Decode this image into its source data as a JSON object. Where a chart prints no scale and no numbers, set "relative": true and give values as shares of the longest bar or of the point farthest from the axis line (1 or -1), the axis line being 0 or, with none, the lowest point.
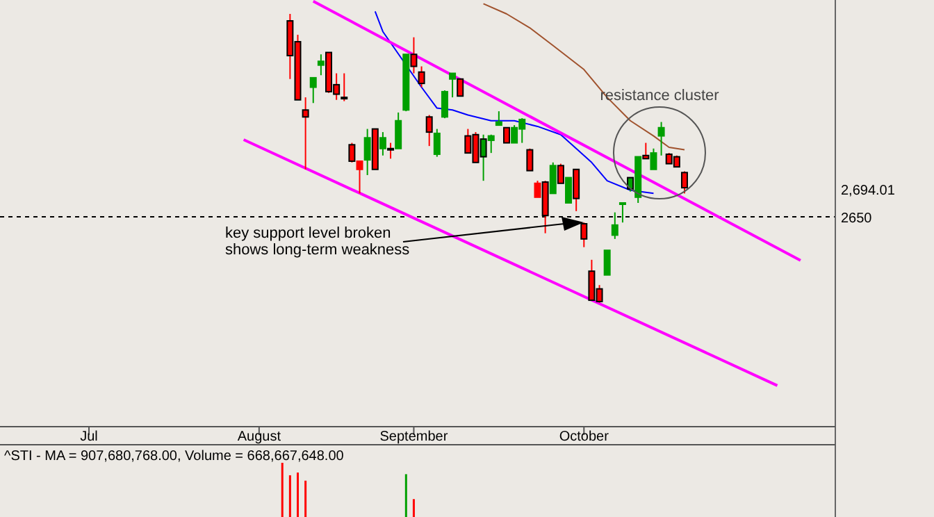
{
  "chart_data": [
    {
      "type": "candlestick",
      "categories": [
        null,
        null,
        null,
        null,
        null,
        null,
        null,
        null,
        null,
        null,
        null,
        "Jul",
        null,
        null,
        null,
        null,
        null,
        null,
        null,
        null,
        null,
        null,
        null,
        null,
        null,
        null,
        null,
        null,
        null,
        null,
        null,
        null,
        null,
        "August",
        null,
        null,
        null,
        null,
        null,
        null,
        null,
        null,
        null,
        null,
        null,
        null,
        null,
        null,
        null,
        null,
        null,
        null,
        null,
        "September",
        null,
        null,
        null,
        null,
        null,
        null,
        null,
        null,
        null,
        null,
        null,
        null,
        null,
        null,
        null,
        null,
        null,
        null,
        null,
        null,
        null,
        "October",
        null,
        null,
        null,
        null,
        null,
        null,
        null,
        null,
        null,
        null,
        null,
        null,
        null,
        null,
        null,
        null,
        null,
        null,
        null,
        null,
        null,
        null,
        null,
        null,
        null,
        null,
        null,
        null,
        null,
        null,
        null,
        null
      ],
      "ohlc": [
        null,
        null,
        null,
        null,
        null,
        null,
        null,
        null,
        null,
        null,
        null,
        null,
        null,
        null,
        null,
        null,
        null,
        null,
        null,
        null,
        null,
        null,
        null,
        null,
        null,
        null,
        null,
        null,
        null,
        null,
        null,
        null,
        null,
        null,
        null,
        null,
        null,
        [
          2960,
          2971,
          2868,
          2905
        ],
        [
          2927,
          2938,
          2835,
          2835
        ],
        [
          2819,
          2839,
          2725,
          2808
        ],
        [
          2855,
          2870,
          2830,
          2870
        ],
        [
          2890,
          2907,
          2874,
          2896
        ],
        [
          2910,
          2910,
          2846,
          2848
        ],
        [
          2859,
          2877,
          2835,
          2844
        ],
        [
          2839,
          2877,
          2833,
          2837
        ],
        [
          2764,
          2767,
          2736,
          2738
        ],
        [
          2725,
          2738,
          2687,
          2738
        ],
        [
          2740,
          2789,
          2716,
          2775
        ],
        [
          2789,
          2789,
          2725,
          2725
        ],
        [
          2758,
          2784,
          2747,
          2775
        ],
        [
          2758,
          2767,
          2742,
          2756
        ],
        [
          2758,
          2815,
          2758,
          2802
        ],
        [
          2819,
          2907,
          2817,
          2907
        ],
        [
          2907,
          2934,
          2877,
          2888
        ],
        [
          2879,
          2888,
          2855,
          2861
        ],
        [
          2808,
          2811,
          2762,
          2784
        ],
        [
          2749,
          2789,
          2745,
          2782
        ],
        [
          2808,
          2850,
          2806,
          2848
        ],
        [
          2868,
          2877,
          2839,
          2877
        ],
        [
          2868,
          2868,
          2841,
          2841
        ],
        [
          2778,
          2789,
          2751,
          2751
        ],
        [
          2780,
          2784,
          2736,
          2736
        ],
        [
          2773,
          2780,
          2707,
          2745
        ],
        [
          2771,
          2780,
          2751,
          2778
        ],
        [
          2795,
          2817,
          2795,
          2800
        ],
        [
          2791,
          2791,
          2767,
          2767
        ],
        [
          2767,
          2795,
          2767,
          2791
        ],
        [
          2789,
          2806,
          2767,
          2804
        ],
        [
          2756,
          2758,
          2723,
          2723
        ],
        [
          2681,
          2707,
          2681,
          2703
        ],
        [
          2705,
          2707,
          2624,
          2652
        ],
        [
          2687,
          2736,
          2687,
          2731
        ],
        [
          2731,
          2734,
          2703,
          2703
        ],
        [
          2672,
          2712,
          2672,
          2712
        ],
        [
          2725,
          2725,
          2659,
          2679
        ],
        [
          2639,
          2641,
          2602,
          2615
        ],
        [
          2564,
          2582,
          2518,
          2518
        ],
        [
          2536,
          2542,
          2514,
          2516
        ],
        [
          2558,
          2597,
          2558,
          2597
        ],
        [
          2621,
          2657,
          2615,
          2637
        ],
        [
          2670,
          2672,
          2641,
          2672
        ],
        [
          2712,
          2712,
          2690,
          2694
        ],
        [
          2681,
          2745,
          2672,
          2745
        ],
        [
          2747,
          2767,
          2742,
          2742
        ],
        [
          2725,
          2758,
          2725,
          2751
        ],
        [
          2778,
          2800,
          2747,
          2791
        ],
        [
          2749,
          2751,
          2734,
          2734
        ],
        [
          2745,
          2747,
          2729,
          2729
        ],
        [
          2720,
          2722,
          2687,
          2696
        ],
        null,
        null,
        null,
        null,
        null,
        null,
        null,
        null,
        null,
        null,
        null,
        null,
        null,
        null,
        null,
        null,
        null,
        null,
        null
      ],
      "colors": [
        null,
        null,
        null,
        null,
        null,
        null,
        null,
        null,
        null,
        null,
        null,
        null,
        null,
        null,
        null,
        null,
        null,
        null,
        null,
        null,
        null,
        null,
        null,
        null,
        null,
        null,
        null,
        null,
        null,
        null,
        null,
        null,
        null,
        null,
        null,
        null,
        null,
        "#ff0000",
        "#ff0000",
        "#ff0000",
        "#00a000",
        "#00a000",
        "#ff0000",
        "#ff0000",
        "#ff0000",
        "#ff0000",
        "#ff0000",
        "#00a000",
        "#ff0000",
        "#00a000",
        "#ff0000",
        "#00a000",
        "#00a000",
        "#ff0000",
        "#ff0000",
        "#ff0000",
        "#00a000",
        "#00a000",
        "#00a000",
        "#ff0000",
        "#ff0000",
        "#ff0000",
        "#00a000",
        "#00a000",
        "#00a000",
        "#ff0000",
        "#00a000",
        "#00a000",
        "#ff0000",
        "#ff0000",
        "#ff0000",
        "#00a000",
        "#ff0000",
        "#00a000",
        "#ff0000",
        "#ff0000",
        "#ff0000",
        "#ff0000",
        "#00a000",
        "#00a000",
        "#00a000",
        "#00a000",
        "#00a000",
        "#ff0000",
        "#00a000",
        "#00a000",
        "#ff0000",
        "#ff0000",
        "#ff0000",
        null,
        null,
        null,
        null,
        null,
        null,
        null,
        null,
        null,
        null,
        null,
        null,
        null,
        null,
        null,
        null,
        null,
        null,
        null
      ],
      "series": [
        {
          "type": "line",
          "color": "#0000ff",
          "values": [
            null,
            null,
            null,
            null,
            null,
            null,
            null,
            null,
            null,
            null,
            null,
            null,
            null,
            null,
            null,
            null,
            null,
            null,
            null,
            null,
            null,
            null,
            null,
            null,
            null,
            null,
            null,
            null,
            null,
            null,
            null,
            null,
            null,
            null,
            null,
            null,
            null,
            null,
            null,
            null,
            null,
            null,
            null,
            null,
            null,
            null,
            null,
            null,
            2975,
            2943,
            null,
            null,
            null,
            null,
            2855,
            null,
            2822,
            null,
            2819,
            null,
            2811,
            null,
            null,
            2802,
            null,
            null,
            2802,
            null,
            null,
            2793,
            null,
            null,
            2780,
            null,
            2758,
            null,
            2736,
            null,
            2707,
            null,
            null,
            2692,
            null,
            null,
            2687,
            null,
            null,
            null,
            null,
            null,
            null,
            null,
            null,
            null,
            null,
            null,
            null,
            null,
            null,
            null,
            null,
            null,
            null,
            null,
            null,
            null,
            null,
            null
          ]
        },
        {
          "type": "line",
          "color": "#a0522d",
          "values": [
            null,
            null,
            null,
            null,
            null,
            null,
            null,
            null,
            null,
            null,
            null,
            null,
            null,
            null,
            null,
            null,
            null,
            null,
            null,
            null,
            null,
            null,
            null,
            null,
            null,
            null,
            null,
            null,
            null,
            null,
            null,
            null,
            null,
            null,
            null,
            null,
            null,
            null,
            null,
            null,
            null,
            null,
            null,
            null,
            null,
            null,
            null,
            null,
            null,
            null,
            null,
            null,
            null,
            null,
            null,
            null,
            null,
            null,
            null,
            null,
            null,
            null,
            2987,
            null,
            null,
            2971,
            null,
            null,
            2949,
            null,
            null,
            2921,
            null,
            null,
            null,
            2883,
            null,
            null,
            2839,
            null,
            null,
            2802,
            null,
            null,
            2778,
            null,
            2760,
            null,
            2756,
            null,
            null,
            null,
            null,
            null,
            null,
            null,
            null,
            null,
            null,
            null,
            null,
            null,
            null,
            null,
            null,
            null,
            null,
            null
          ]
        },
        {
          "type": "line",
          "color": "#ff00ff",
          "values": [
            null,
            null,
            null,
            null,
            null,
            null,
            null,
            null,
            null,
            null,
            null,
            null,
            null,
            null,
            null,
            null,
            null,
            null,
            null,
            null,
            null,
            null,
            null,
            null,
            null,
            null,
            null,
            null,
            null,
            null,
            null,
            null,
            null,
            null,
            null,
            null,
            null,
            null,
            null,
            null,
            2991,
            null,
            null,
            null,
            null,
            null,
            null,
            null,
            null,
            null,
            null,
            null,
            null,
            null,
            null,
            null,
            null,
            null,
            null,
            null,
            null,
            null,
            null,
            null,
            null,
            null,
            null,
            null,
            null,
            null,
            null,
            null,
            null,
            null,
            null,
            null,
            null,
            null,
            null,
            null,
            null,
            null,
            null,
            null,
            null,
            null,
            null,
            null,
            null,
            null,
            null,
            null,
            null,
            null,
            null,
            null,
            null,
            null,
            null,
            null,
            null,
            null,
            null,
            2581,
            null,
            null,
            null,
            null
          ]
        },
        {
          "type": "line",
          "color": "#ff00ff",
          "values": [
            null,
            null,
            null,
            null,
            null,
            null,
            null,
            null,
            null,
            null,
            null,
            null,
            null,
            null,
            null,
            null,
            null,
            null,
            null,
            null,
            null,
            null,
            null,
            null,
            null,
            null,
            null,
            null,
            null,
            null,
            null,
            2772,
            null,
            null,
            null,
            null,
            null,
            null,
            null,
            null,
            null,
            null,
            null,
            null,
            null,
            null,
            null,
            null,
            null,
            null,
            null,
            null,
            null,
            null,
            null,
            null,
            null,
            null,
            null,
            null,
            null,
            null,
            null,
            null,
            null,
            null,
            null,
            null,
            null,
            null,
            null,
            null,
            null,
            null,
            null,
            null,
            null,
            null,
            null,
            null,
            null,
            null,
            null,
            null,
            null,
            null,
            null,
            null,
            null,
            null,
            null,
            null,
            null,
            null,
            null,
            null,
            null,
            null,
            null,
            null,
            2383,
            null,
            null,
            null,
            null,
            null,
            null,
            null
          ]
        }
      ],
      "ylim": [
        2318,
        2993
      ],
      "yticks": [
        {
          "value": 2650,
          "label": "2650"
        },
        {
          "value": 2694.01,
          "label": "2,694.01"
        }
      ],
      "ref_lines": [
        {
          "axis": "y",
          "value": 2650,
          "label": null,
          "color": "#000000",
          "line_style": "dashed"
        }
      ],
      "annotations": [
        "resistance cluster",
        "key support level broken\nshows long-term weakness"
      ],
      "grid": false
    },
    {
      "type": "bar",
      "relative": true,
      "title": "^STI - MA = 907,680,768.00, Volume = 668,667,648.00",
      "categories": [
        null,
        null,
        null,
        null,
        null,
        null,
        null,
        null,
        null,
        null,
        null,
        null,
        null,
        null,
        null,
        null,
        null,
        null,
        null,
        null,
        null,
        null,
        null,
        null,
        null,
        null,
        null,
        null,
        null,
        null,
        null,
        null,
        null,
        null,
        null,
        null,
        null,
        null,
        null,
        null,
        null,
        null,
        null,
        null,
        null,
        null,
        null,
        null,
        null,
        null,
        null,
        null,
        null,
        null,
        null,
        null,
        null,
        null,
        null,
        null,
        null,
        null,
        null,
        null,
        null,
        null,
        null,
        null,
        null,
        null,
        null,
        null,
        null,
        null,
        null,
        null,
        null,
        null,
        null,
        null,
        null,
        null,
        null,
        null,
        null,
        null,
        null,
        null,
        null,
        null,
        null,
        null,
        null,
        null,
        null,
        null,
        null,
        null,
        null,
        null,
        null,
        null,
        null,
        null,
        null,
        null,
        null,
        null
      ],
      "values": [
        null,
        null,
        null,
        null,
        null,
        null,
        null,
        null,
        null,
        null,
        null,
        null,
        null,
        null,
        null,
        null,
        null,
        null,
        null,
        null,
        null,
        null,
        null,
        null,
        null,
        null,
        null,
        null,
        null,
        null,
        null,
        null,
        null,
        null,
        null,
        null,
        1,
        0.77,
        0.82,
        0.67,
        null,
        null,
        null,
        null,
        null,
        null,
        null,
        null,
        null,
        null,
        null,
        null,
        0.79,
        0.33,
        null,
        null,
        null,
        null,
        null,
        null,
        null,
        null,
        null,
        null,
        null,
        null,
        null,
        null,
        null,
        null,
        null,
        null,
        null,
        null,
        null,
        null,
        null,
        null,
        null,
        null,
        null,
        null,
        null,
        null,
        null,
        null,
        null,
        null,
        null,
        null,
        null,
        null,
        null,
        null,
        null,
        null,
        null,
        null,
        null,
        null,
        null,
        null,
        null,
        null,
        null,
        null,
        null,
        null
      ],
      "colors": [
        null,
        null,
        null,
        null,
        null,
        null,
        null,
        null,
        null,
        null,
        null,
        null,
        null,
        null,
        null,
        null,
        null,
        null,
        null,
        null,
        null,
        null,
        null,
        null,
        null,
        null,
        null,
        null,
        null,
        null,
        null,
        null,
        null,
        null,
        null,
        null,
        "#ff0000",
        "#ff0000",
        "#ff0000",
        "#ff0000",
        null,
        null,
        null,
        null,
        null,
        null,
        null,
        null,
        null,
        null,
        null,
        null,
        "#00a000",
        "#ff0000",
        null,
        null,
        null,
        null,
        null,
        null,
        null,
        null,
        null,
        null,
        null,
        null,
        null,
        null,
        null,
        null,
        null,
        null,
        null,
        null,
        null,
        null,
        null,
        null,
        null,
        null,
        null,
        null,
        null,
        null,
        null,
        null,
        null,
        null,
        null,
        null,
        null,
        null,
        null,
        null,
        null,
        null,
        null,
        null,
        null,
        null,
        null,
        null,
        null,
        null,
        null,
        null,
        null,
        null
      ]
    }
  ]
}
